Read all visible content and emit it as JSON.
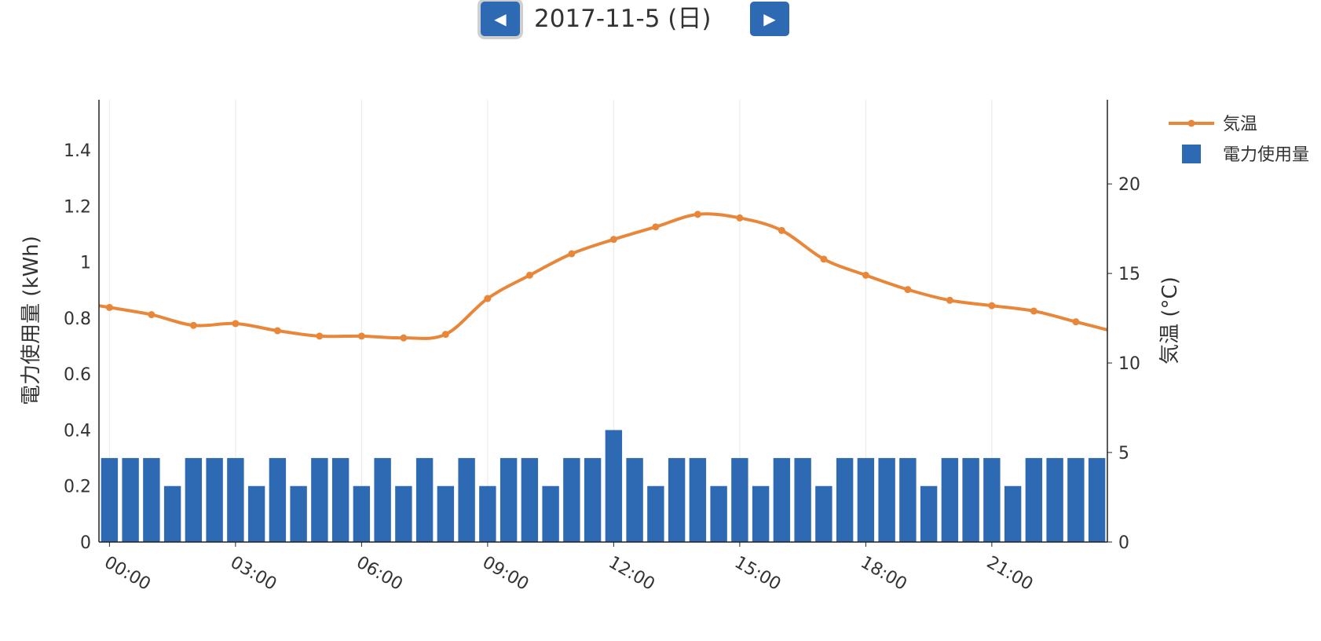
{
  "nav": {
    "date": "2017-11-5 (日)",
    "prev_icon": "triangle-left-icon",
    "next_icon": "triangle-right-icon"
  },
  "colors": {
    "bar": "#2d6ab3",
    "line": "#e8873a",
    "grid": "#e9e9e9",
    "axis": "#222222",
    "text": "#333333"
  },
  "chart_data": {
    "type": "bar+line",
    "x": [
      "00:00",
      "00:30",
      "01:00",
      "01:30",
      "02:00",
      "02:30",
      "03:00",
      "03:30",
      "04:00",
      "04:30",
      "05:00",
      "05:30",
      "06:00",
      "06:30",
      "07:00",
      "07:30",
      "08:00",
      "08:30",
      "09:00",
      "09:30",
      "10:00",
      "10:30",
      "11:00",
      "11:30",
      "12:00",
      "12:30",
      "13:00",
      "13:30",
      "14:00",
      "14:30",
      "15:00",
      "15:30",
      "16:00",
      "16:30",
      "17:00",
      "17:30",
      "18:00",
      "18:30",
      "19:00",
      "19:30",
      "20:00",
      "20:30",
      "21:00",
      "21:30",
      "22:00",
      "22:30",
      "23:00",
      "23:30"
    ],
    "xticks": [
      "00:00",
      "03:00",
      "06:00",
      "09:00",
      "12:00",
      "15:00",
      "18:00",
      "21:00"
    ],
    "series": [
      {
        "name": "電力使用量",
        "type": "bar",
        "axis": "left",
        "values": [
          0.3,
          0.3,
          0.3,
          0.2,
          0.3,
          0.3,
          0.3,
          0.2,
          0.3,
          0.2,
          0.3,
          0.3,
          0.2,
          0.3,
          0.2,
          0.3,
          0.2,
          0.3,
          0.2,
          0.3,
          0.3,
          0.2,
          0.3,
          0.3,
          0.4,
          0.3,
          0.2,
          0.3,
          0.3,
          0.2,
          0.3,
          0.2,
          0.3,
          0.3,
          0.2,
          0.3,
          0.3,
          0.3,
          0.3,
          0.2,
          0.3,
          0.3,
          0.3,
          0.2,
          0.3,
          0.3,
          0.3,
          0.3
        ]
      },
      {
        "name": "気温",
        "type": "line",
        "axis": "right",
        "x": [
          "00:00",
          "01:00",
          "02:00",
          "03:00",
          "04:00",
          "05:00",
          "06:00",
          "07:00",
          "08:00",
          "09:00",
          "10:00",
          "11:00",
          "12:00",
          "13:00",
          "14:00",
          "15:00",
          "16:00",
          "17:00",
          "18:00",
          "19:00",
          "20:00",
          "21:00",
          "22:00",
          "23:00"
        ],
        "values": [
          13.1,
          12.7,
          12.1,
          12.2,
          11.8,
          11.5,
          11.5,
          11.4,
          11.6,
          13.6,
          14.9,
          16.1,
          16.9,
          17.6,
          18.3,
          18.1,
          17.4,
          15.8,
          14.9,
          14.1,
          13.5,
          13.2,
          12.9,
          12.3
        ]
      }
    ],
    "yleft": {
      "label": "電力使用量 (kWh)",
      "range": [
        0,
        1.58
      ],
      "ticks": [
        "0",
        "0.2",
        "0.4",
        "0.6",
        "0.8",
        "1",
        "1.2",
        "1.4"
      ]
    },
    "yright": {
      "label": "気温 (°C)",
      "range": [
        0,
        24.7
      ],
      "ticks": [
        "0",
        "5",
        "10",
        "15",
        "20"
      ]
    },
    "legend": {
      "position": "top-right",
      "items": [
        "気温",
        "電力使用量"
      ]
    },
    "grid": {
      "vertical": true,
      "horizontal": false
    }
  }
}
